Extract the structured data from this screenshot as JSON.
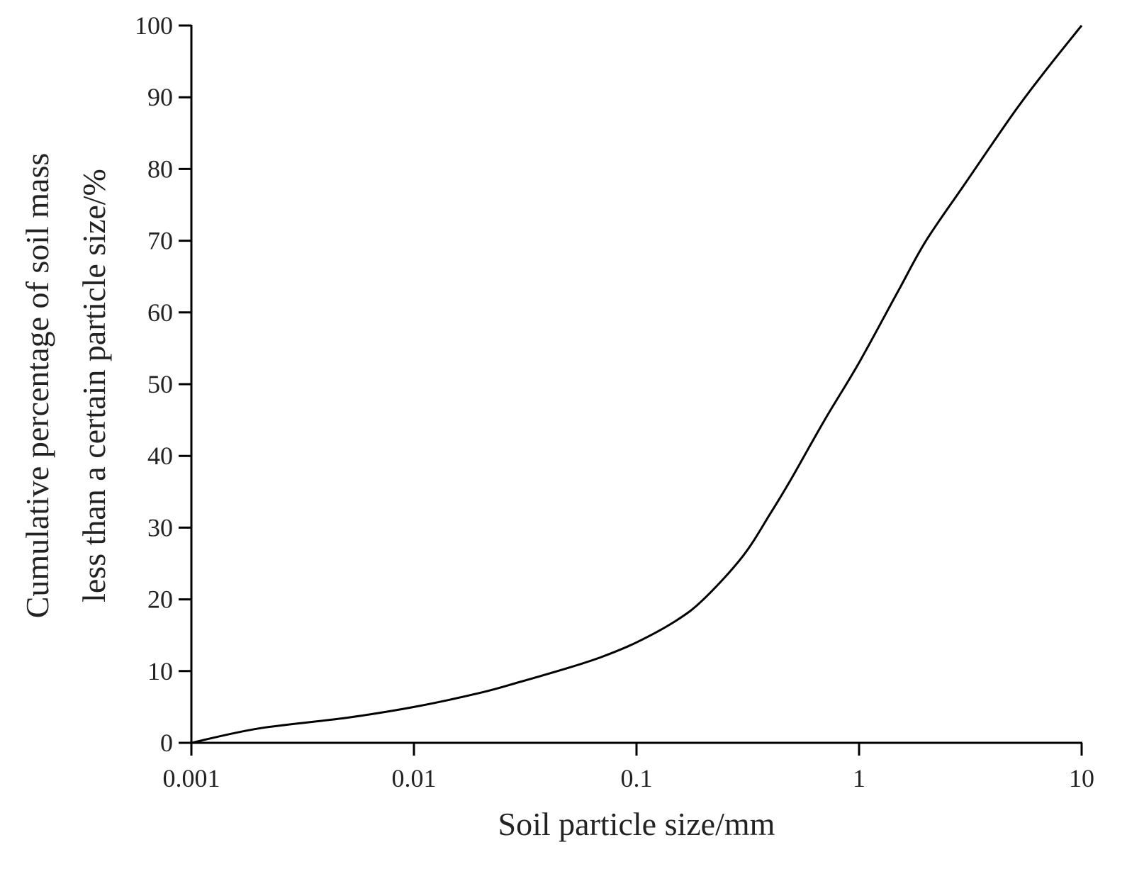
{
  "chart_data": {
    "type": "line",
    "title": "",
    "xlabel": "Soil particle size/mm",
    "ylabel_lines": [
      "Cumulative percentage of soil mass",
      "less than a certain particle size/%"
    ],
    "x_scale": "log",
    "xlim": [
      0.001,
      10
    ],
    "ylim": [
      0,
      100
    ],
    "x_ticks": [
      0.001,
      0.01,
      0.1,
      1,
      10
    ],
    "x_tick_labels": [
      "0.001",
      "0.01",
      "0.1",
      "1",
      "10"
    ],
    "y_ticks": [
      0,
      10,
      20,
      30,
      40,
      50,
      60,
      70,
      80,
      90,
      100
    ],
    "y_tick_labels": [
      "0",
      "10",
      "20",
      "30",
      "40",
      "50",
      "60",
      "70",
      "80",
      "90",
      "100"
    ],
    "grid": false,
    "series": [
      {
        "color": "#000000",
        "x": [
          0.001,
          0.002,
          0.005,
          0.01,
          0.02,
          0.03,
          0.05,
          0.07,
          0.1,
          0.15,
          0.2,
          0.3,
          0.4,
          0.5,
          0.7,
          1.0,
          1.5,
          2.0,
          3.0,
          5.0,
          7.0,
          10.0
        ],
        "y": [
          0,
          2,
          3.5,
          5,
          7,
          8.5,
          10.5,
          12,
          14,
          17,
          20,
          26,
          32,
          37,
          45,
          53,
          63,
          70,
          78,
          88,
          94,
          100
        ]
      }
    ]
  }
}
